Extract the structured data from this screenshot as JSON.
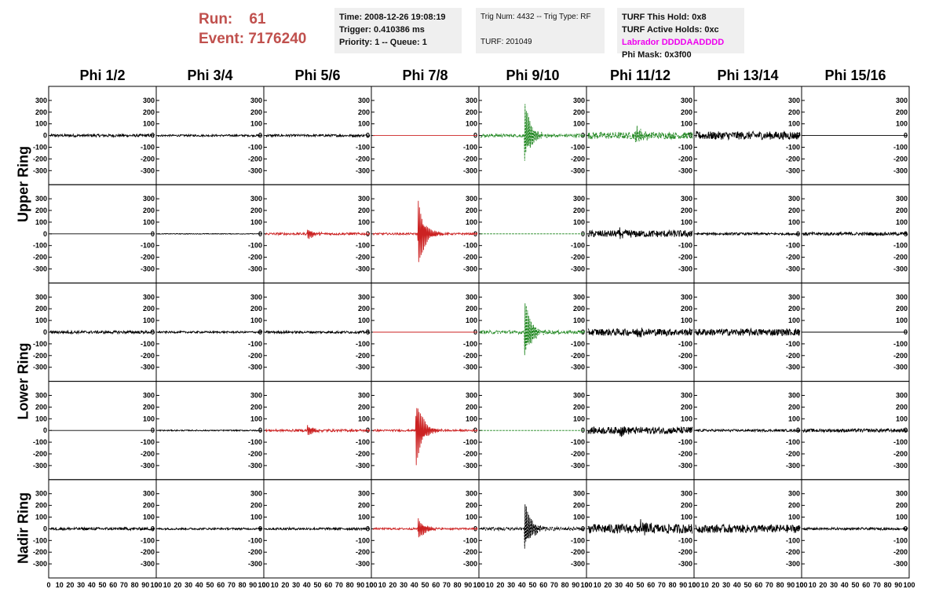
{
  "header": {
    "run_label": "Run:",
    "run_value": "61",
    "event_label": "Event:",
    "event_value": "7176240"
  },
  "info_time": {
    "time": "Time: 2008-12-26 19:08:19",
    "trigger": "Trigger: 0.410386 ms",
    "priority": "Priority: 1 -- Queue: 1"
  },
  "info_trig": {
    "trig": "Trig Num: 4432 -- Trig Type: RF",
    "turf": "TURF: 201049"
  },
  "info_turf": {
    "hold": "TURF This Hold: 0x8",
    "active": "TURF Active Holds: 0xc",
    "labrador": "Labrador DDDDAADDDD",
    "phi_mask": "Phi Mask: 0x3f00",
    "labrador_color": "#ee00ee"
  },
  "chart_data": {
    "type": "line",
    "columns": [
      "Phi 1/2",
      "Phi 3/4",
      "Phi 5/6",
      "Phi 7/8",
      "Phi 9/10",
      "Phi 11/12",
      "Phi 13/14",
      "Phi 15/16"
    ],
    "row_labels": [
      "Upper Ring",
      "Lower Ring",
      "Nadir Ring"
    ],
    "y_ticks": [
      300,
      200,
      100,
      0,
      -100,
      -200,
      -300
    ],
    "x_ticks": [
      0,
      10,
      20,
      30,
      40,
      50,
      60,
      70,
      80,
      90,
      100
    ],
    "x_tick_labels": [
      "0",
      "10",
      "20",
      "30",
      "40",
      "50",
      "60",
      "70",
      "80",
      "90",
      "100"
    ],
    "xlim": [
      0,
      100
    ],
    "ylim": [
      -380,
      380
    ],
    "colors": {
      "black": "#000000",
      "red": "#cc2222",
      "green": "#228822"
    },
    "panels": [
      [
        {
          "color": "black",
          "amp": 12,
          "burst": 0,
          "peak": 42,
          "flat": false
        },
        {
          "color": "black",
          "amp": 8,
          "burst": 0,
          "peak": 40,
          "flat": false
        },
        {
          "color": "black",
          "amp": 10,
          "burst": 0,
          "peak": 50,
          "flat": false
        },
        {
          "color": "red",
          "amp": 0,
          "burst": 0,
          "peak": 40,
          "flat": true
        },
        {
          "color": "green",
          "amp": 15,
          "burst": 330,
          "peak": 42,
          "flat": false
        },
        {
          "color": "green",
          "amp": 30,
          "burst": 90,
          "peak": 45,
          "flat": false
        },
        {
          "color": "black",
          "amp": 35,
          "burst": 0,
          "peak": 40,
          "flat": false
        },
        {
          "color": "black",
          "amp": 0,
          "burst": 0,
          "peak": 40,
          "flat": true
        }
      ],
      [
        {
          "color": "black",
          "amp": 0,
          "burst": 0,
          "peak": 40,
          "flat": true
        },
        {
          "color": "black",
          "amp": 3,
          "burst": 0,
          "peak": 40,
          "flat": false
        },
        {
          "color": "red",
          "amp": 10,
          "burst": 60,
          "peak": 40,
          "flat": false
        },
        {
          "color": "red",
          "amp": 8,
          "burst": 370,
          "peak": 43,
          "flat": false
        },
        {
          "color": "green",
          "amp": 0,
          "burst": 0,
          "peak": 40,
          "flat": true
        },
        {
          "color": "black",
          "amp": 30,
          "burst": 40,
          "peak": 30,
          "flat": false
        },
        {
          "color": "black",
          "amp": 10,
          "burst": 0,
          "peak": 40,
          "flat": false
        },
        {
          "color": "black",
          "amp": 14,
          "burst": 0,
          "peak": 40,
          "flat": false
        }
      ],
      [
        {
          "color": "black",
          "amp": 12,
          "burst": 0,
          "peak": 42,
          "flat": false
        },
        {
          "color": "black",
          "amp": 8,
          "burst": 0,
          "peak": 40,
          "flat": false
        },
        {
          "color": "black",
          "amp": 10,
          "burst": 0,
          "peak": 50,
          "flat": false
        },
        {
          "color": "red",
          "amp": 0,
          "burst": 0,
          "peak": 40,
          "flat": true
        },
        {
          "color": "green",
          "amp": 15,
          "burst": 330,
          "peak": 42,
          "flat": false
        },
        {
          "color": "black",
          "amp": 30,
          "burst": 60,
          "peak": 45,
          "flat": false
        },
        {
          "color": "black",
          "amp": 30,
          "burst": 0,
          "peak": 40,
          "flat": false
        },
        {
          "color": "black",
          "amp": 0,
          "burst": 0,
          "peak": 40,
          "flat": true
        }
      ],
      [
        {
          "color": "black",
          "amp": 0,
          "burst": 0,
          "peak": 40,
          "flat": true
        },
        {
          "color": "black",
          "amp": 5,
          "burst": 0,
          "peak": 40,
          "flat": false
        },
        {
          "color": "red",
          "amp": 10,
          "burst": 60,
          "peak": 40,
          "flat": false
        },
        {
          "color": "red",
          "amp": 8,
          "burst": 370,
          "peak": 41,
          "flat": false
        },
        {
          "color": "green",
          "amp": 0,
          "burst": 0,
          "peak": 40,
          "flat": true
        },
        {
          "color": "black",
          "amp": 30,
          "burst": 40,
          "peak": 30,
          "flat": false
        },
        {
          "color": "black",
          "amp": 10,
          "burst": 0,
          "peak": 40,
          "flat": false
        },
        {
          "color": "black",
          "amp": 14,
          "burst": 0,
          "peak": 40,
          "flat": false
        }
      ],
      [
        {
          "color": "black",
          "amp": 12,
          "burst": 0,
          "peak": 42,
          "flat": false
        },
        {
          "color": "black",
          "amp": 8,
          "burst": 0,
          "peak": 40,
          "flat": false
        },
        {
          "color": "black",
          "amp": 10,
          "burst": 0,
          "peak": 50,
          "flat": false
        },
        {
          "color": "red",
          "amp": 8,
          "burst": 120,
          "peak": 43,
          "flat": false
        },
        {
          "color": "black",
          "amp": 15,
          "burst": 280,
          "peak": 42,
          "flat": false
        },
        {
          "color": "black",
          "amp": 40,
          "burst": 80,
          "peak": 50,
          "flat": false
        },
        {
          "color": "black",
          "amp": 35,
          "burst": 0,
          "peak": 40,
          "flat": false
        },
        {
          "color": "black",
          "amp": 10,
          "burst": 0,
          "peak": 40,
          "flat": false
        }
      ]
    ]
  }
}
